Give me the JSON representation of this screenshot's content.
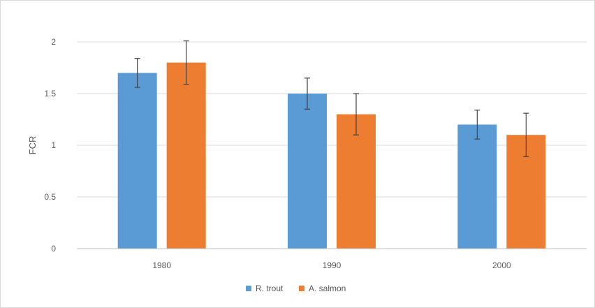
{
  "chart_data": {
    "type": "bar",
    "title": "",
    "xlabel": "",
    "ylabel": "FCR",
    "categories": [
      "1980",
      "1990",
      "2000"
    ],
    "series": [
      {
        "name": "R. trout",
        "color": "#5b9bd5",
        "values": [
          1.7,
          1.5,
          1.2
        ],
        "error": [
          0.14,
          0.15,
          0.14
        ]
      },
      {
        "name": "A. salmon",
        "color": "#ed7d31",
        "values": [
          1.8,
          1.3,
          1.1
        ],
        "error": [
          0.21,
          0.2,
          0.21
        ]
      }
    ],
    "y_ticks": [
      "0",
      "0.5",
      "1",
      "1.5",
      "2"
    ],
    "ylim": [
      0,
      2
    ],
    "grid": true,
    "legend_position": "bottom"
  }
}
